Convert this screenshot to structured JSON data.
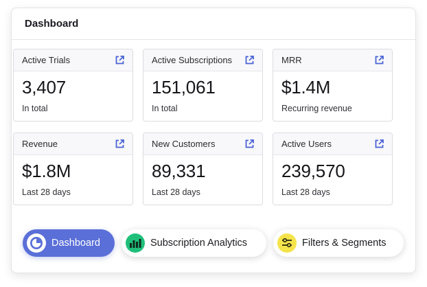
{
  "header": {
    "title": "Dashboard"
  },
  "cards": [
    {
      "label": "Active Trials",
      "value": "3,407",
      "sub": "In total"
    },
    {
      "label": "Active Subscriptions",
      "value": "151,061",
      "sub": "In total"
    },
    {
      "label": "MRR",
      "value": "$1.4M",
      "sub": "Recurring revenue"
    },
    {
      "label": "Revenue",
      "value": "$1.8M",
      "sub": "Last 28 days"
    },
    {
      "label": "New Customers",
      "value": "89,331",
      "sub": "Last 28 days"
    },
    {
      "label": "Active Users",
      "value": "239,570",
      "sub": "Last 28 days"
    }
  ],
  "nav": {
    "dashboard": {
      "label": "Dashboard",
      "icon": "pie-chart-icon",
      "color": "#5a6fd8"
    },
    "subscription_analytics": {
      "label": "Subscription Analytics",
      "icon": "bar-chart-icon",
      "color": "#1fbf7a"
    },
    "filters_segments": {
      "label": "Filters & Segments",
      "icon": "sliders-icon",
      "color": "#f5e34a"
    }
  },
  "colors": {
    "accent": "#5a6fd8",
    "link_icon": "#4a63d6"
  }
}
